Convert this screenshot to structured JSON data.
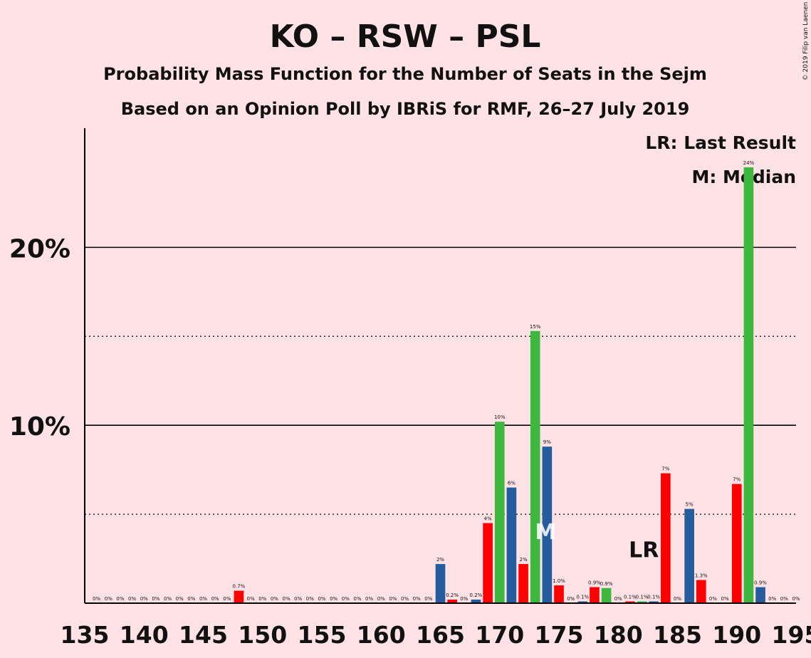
{
  "chart_data": {
    "type": "bar",
    "title": "KO – RSW – PSL",
    "subtitle": "Probability Mass Function for the Number of Seats in the Sejm",
    "subtitle2": "Based on an Opinion Poll by IBRiS for RMF, 26–27 July 2019",
    "copyright": "© 2019 Filip van Laenen",
    "legend": [
      "LR: Last Result",
      "M: Median"
    ],
    "x_min": 135,
    "x_max": 195,
    "x_ticks": [
      135,
      140,
      145,
      150,
      155,
      160,
      165,
      170,
      175,
      180,
      185,
      190,
      195
    ],
    "ylim": [
      0,
      26.7
    ],
    "y_ticks": [
      {
        "value": 10,
        "label": "10%"
      },
      {
        "value": 20,
        "label": "20%"
      }
    ],
    "y_dotted": [
      5,
      15
    ],
    "colors": {
      "red": "#FF0000",
      "blue": "#255C9E",
      "green": "#3DB73D",
      "background": "#FFE2E6"
    },
    "bars": [
      {
        "x": 136,
        "value": 0,
        "label": "0%",
        "color": "red"
      },
      {
        "x": 137,
        "value": 0,
        "label": "0%",
        "color": "blue"
      },
      {
        "x": 138,
        "value": 0,
        "label": "0%",
        "color": "green"
      },
      {
        "x": 139,
        "value": 0,
        "label": "0%",
        "color": "red"
      },
      {
        "x": 140,
        "value": 0,
        "label": "0%",
        "color": "blue"
      },
      {
        "x": 141,
        "value": 0,
        "label": "0%",
        "color": "green"
      },
      {
        "x": 142,
        "value": 0,
        "label": "0%",
        "color": "red"
      },
      {
        "x": 143,
        "value": 0,
        "label": "0%",
        "color": "blue"
      },
      {
        "x": 144,
        "value": 0,
        "label": "0%",
        "color": "green"
      },
      {
        "x": 145,
        "value": 0,
        "label": "0%",
        "color": "red"
      },
      {
        "x": 146,
        "value": 0,
        "label": "0%",
        "color": "blue"
      },
      {
        "x": 147,
        "value": 0,
        "label": "0%",
        "color": "green"
      },
      {
        "x": 148,
        "value": 0.7,
        "label": "0.7%",
        "color": "red"
      },
      {
        "x": 149,
        "value": 0,
        "label": "0%",
        "color": "blue"
      },
      {
        "x": 150,
        "value": 0,
        "label": "0%",
        "color": "green"
      },
      {
        "x": 151,
        "value": 0,
        "label": "0%",
        "color": "red"
      },
      {
        "x": 152,
        "value": 0,
        "label": "0%",
        "color": "blue"
      },
      {
        "x": 153,
        "value": 0,
        "label": "0%",
        "color": "green"
      },
      {
        "x": 154,
        "value": 0,
        "label": "0%",
        "color": "red"
      },
      {
        "x": 155,
        "value": 0,
        "label": "0%",
        "color": "blue"
      },
      {
        "x": 156,
        "value": 0,
        "label": "0%",
        "color": "green"
      },
      {
        "x": 157,
        "value": 0,
        "label": "0%",
        "color": "red"
      },
      {
        "x": 158,
        "value": 0,
        "label": "0%",
        "color": "blue"
      },
      {
        "x": 159,
        "value": 0,
        "label": "0%",
        "color": "green"
      },
      {
        "x": 160,
        "value": 0,
        "label": "0%",
        "color": "red"
      },
      {
        "x": 161,
        "value": 0,
        "label": "0%",
        "color": "blue"
      },
      {
        "x": 162,
        "value": 0,
        "label": "0%",
        "color": "green"
      },
      {
        "x": 163,
        "value": 0,
        "label": "0%",
        "color": "red"
      },
      {
        "x": 164,
        "value": 0,
        "label": "0%",
        "color": "blue"
      },
      {
        "x": 165,
        "value": 2.2,
        "label": "2%",
        "color": "blue"
      },
      {
        "x": 166,
        "value": 0.2,
        "label": "0.2%",
        "color": "red"
      },
      {
        "x": 167,
        "value": 0,
        "label": "0%",
        "color": "green"
      },
      {
        "x": 168,
        "value": 0.2,
        "label": "0.2%",
        "color": "blue"
      },
      {
        "x": 169,
        "value": 4.5,
        "label": "4%",
        "color": "red"
      },
      {
        "x": 170,
        "value": 10.2,
        "label": "10%",
        "color": "green"
      },
      {
        "x": 171,
        "value": 6.5,
        "label": "6%",
        "color": "blue"
      },
      {
        "x": 172,
        "value": 2.2,
        "label": "2%",
        "color": "red"
      },
      {
        "x": 173,
        "value": 15.3,
        "label": "15%",
        "color": "green"
      },
      {
        "x": 174,
        "value": 8.8,
        "label": "9%",
        "color": "blue"
      },
      {
        "x": 175,
        "value": 1.0,
        "label": "1.0%",
        "color": "red"
      },
      {
        "x": 176,
        "value": 0,
        "label": "0%",
        "color": "green"
      },
      {
        "x": 177,
        "value": 0.1,
        "label": "0.1%",
        "color": "blue"
      },
      {
        "x": 178,
        "value": 0.9,
        "label": "0.9%",
        "color": "red"
      },
      {
        "x": 179,
        "value": 0.85,
        "label": "0.9%",
        "color": "green"
      },
      {
        "x": 180,
        "value": 0,
        "label": "0%",
        "color": "blue"
      },
      {
        "x": 181,
        "value": 0.1,
        "label": "0.1%",
        "color": "red"
      },
      {
        "x": 182,
        "value": 0.1,
        "label": "0.1%",
        "color": "green"
      },
      {
        "x": 183,
        "value": 0.1,
        "label": "0.1%",
        "color": "blue"
      },
      {
        "x": 184,
        "value": 7.3,
        "label": "7%",
        "color": "red"
      },
      {
        "x": 185,
        "value": 0,
        "label": "0%",
        "color": "green"
      },
      {
        "x": 186,
        "value": 5.3,
        "label": "5%",
        "color": "blue"
      },
      {
        "x": 187,
        "value": 1.3,
        "label": "1.3%",
        "color": "red"
      },
      {
        "x": 188,
        "value": 0,
        "label": "0%",
        "color": "green"
      },
      {
        "x": 189,
        "value": 0,
        "label": "0%",
        "color": "blue"
      },
      {
        "x": 190,
        "value": 6.7,
        "label": "7%",
        "color": "red"
      },
      {
        "x": 191,
        "value": 24.5,
        "label": "24%",
        "color": "green"
      },
      {
        "x": 192,
        "value": 0.9,
        "label": "0.9%",
        "color": "blue"
      },
      {
        "x": 193,
        "value": 0,
        "label": "0%",
        "color": "red"
      },
      {
        "x": 194,
        "value": 0,
        "label": "0%",
        "color": "green"
      },
      {
        "x": 195,
        "value": 0,
        "label": "0%",
        "color": "blue"
      }
    ],
    "markers": [
      {
        "text": "LR",
        "x": 183
      },
      {
        "text": "M",
        "x": 174
      }
    ]
  }
}
